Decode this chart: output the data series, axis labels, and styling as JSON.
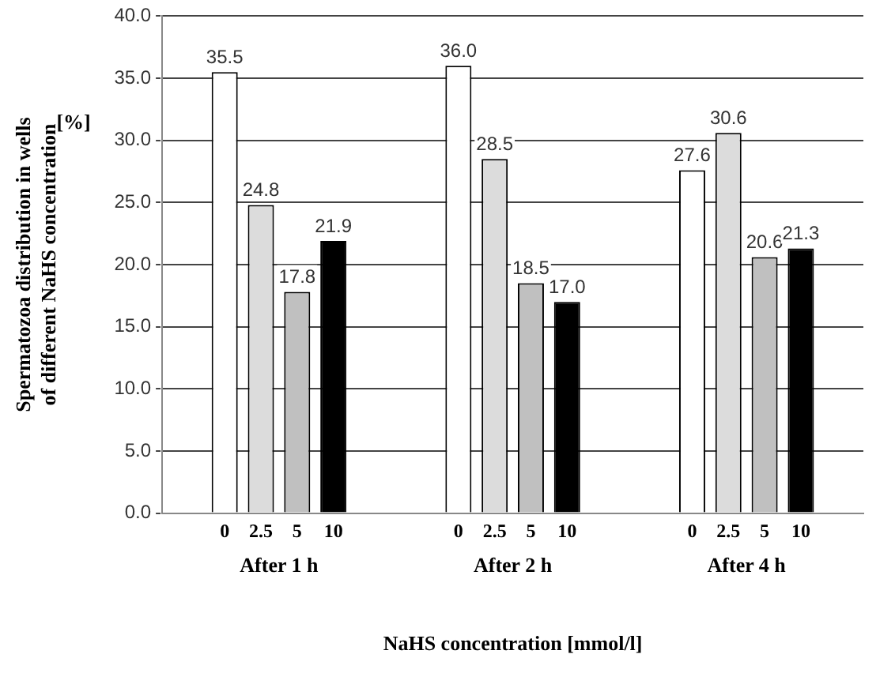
{
  "chart_data": {
    "type": "bar",
    "categories": [
      "After 1 h",
      "After 2 h",
      "After 4 h"
    ],
    "series": [
      {
        "name": "0",
        "color": "#ffffff",
        "values": [
          35.5,
          36.0,
          27.6
        ],
        "value_labels": [
          "35.5",
          "36.0",
          "27.6"
        ]
      },
      {
        "name": "2.5",
        "color": "#dcdcdc",
        "values": [
          24.8,
          28.5,
          30.6
        ],
        "value_labels": [
          "24.8",
          "28.5",
          "30.6"
        ]
      },
      {
        "name": "5",
        "color": "#c0c0c0",
        "values": [
          17.8,
          18.5,
          20.6
        ],
        "value_labels": [
          "17.8",
          "18.5",
          "20.6"
        ]
      },
      {
        "name": "10",
        "color": "#000000",
        "values": [
          21.9,
          17.0,
          21.3
        ],
        "value_labels": [
          "21.9",
          "17.0",
          "21.3"
        ]
      }
    ],
    "ylim": [
      0,
      40
    ],
    "yticks": [
      {
        "value": 0,
        "label": "0.0"
      },
      {
        "value": 5,
        "label": "5.0"
      },
      {
        "value": 10,
        "label": "10.0"
      },
      {
        "value": 15,
        "label": "15.0"
      },
      {
        "value": 20,
        "label": "20.0"
      },
      {
        "value": 25,
        "label": "25.0"
      },
      {
        "value": 30,
        "label": "30.0"
      },
      {
        "value": 35,
        "label": "35.0"
      },
      {
        "value": 40,
        "label": "40.0"
      }
    ],
    "ylabel": "Spermatozoa distribution in wells\nof different NaHS concentration",
    "xlabel": "NaHS concentration [mmol/l]",
    "annotations": [
      "[%]"
    ],
    "grid": "y",
    "line_style": "dashed",
    "legend": false
  }
}
